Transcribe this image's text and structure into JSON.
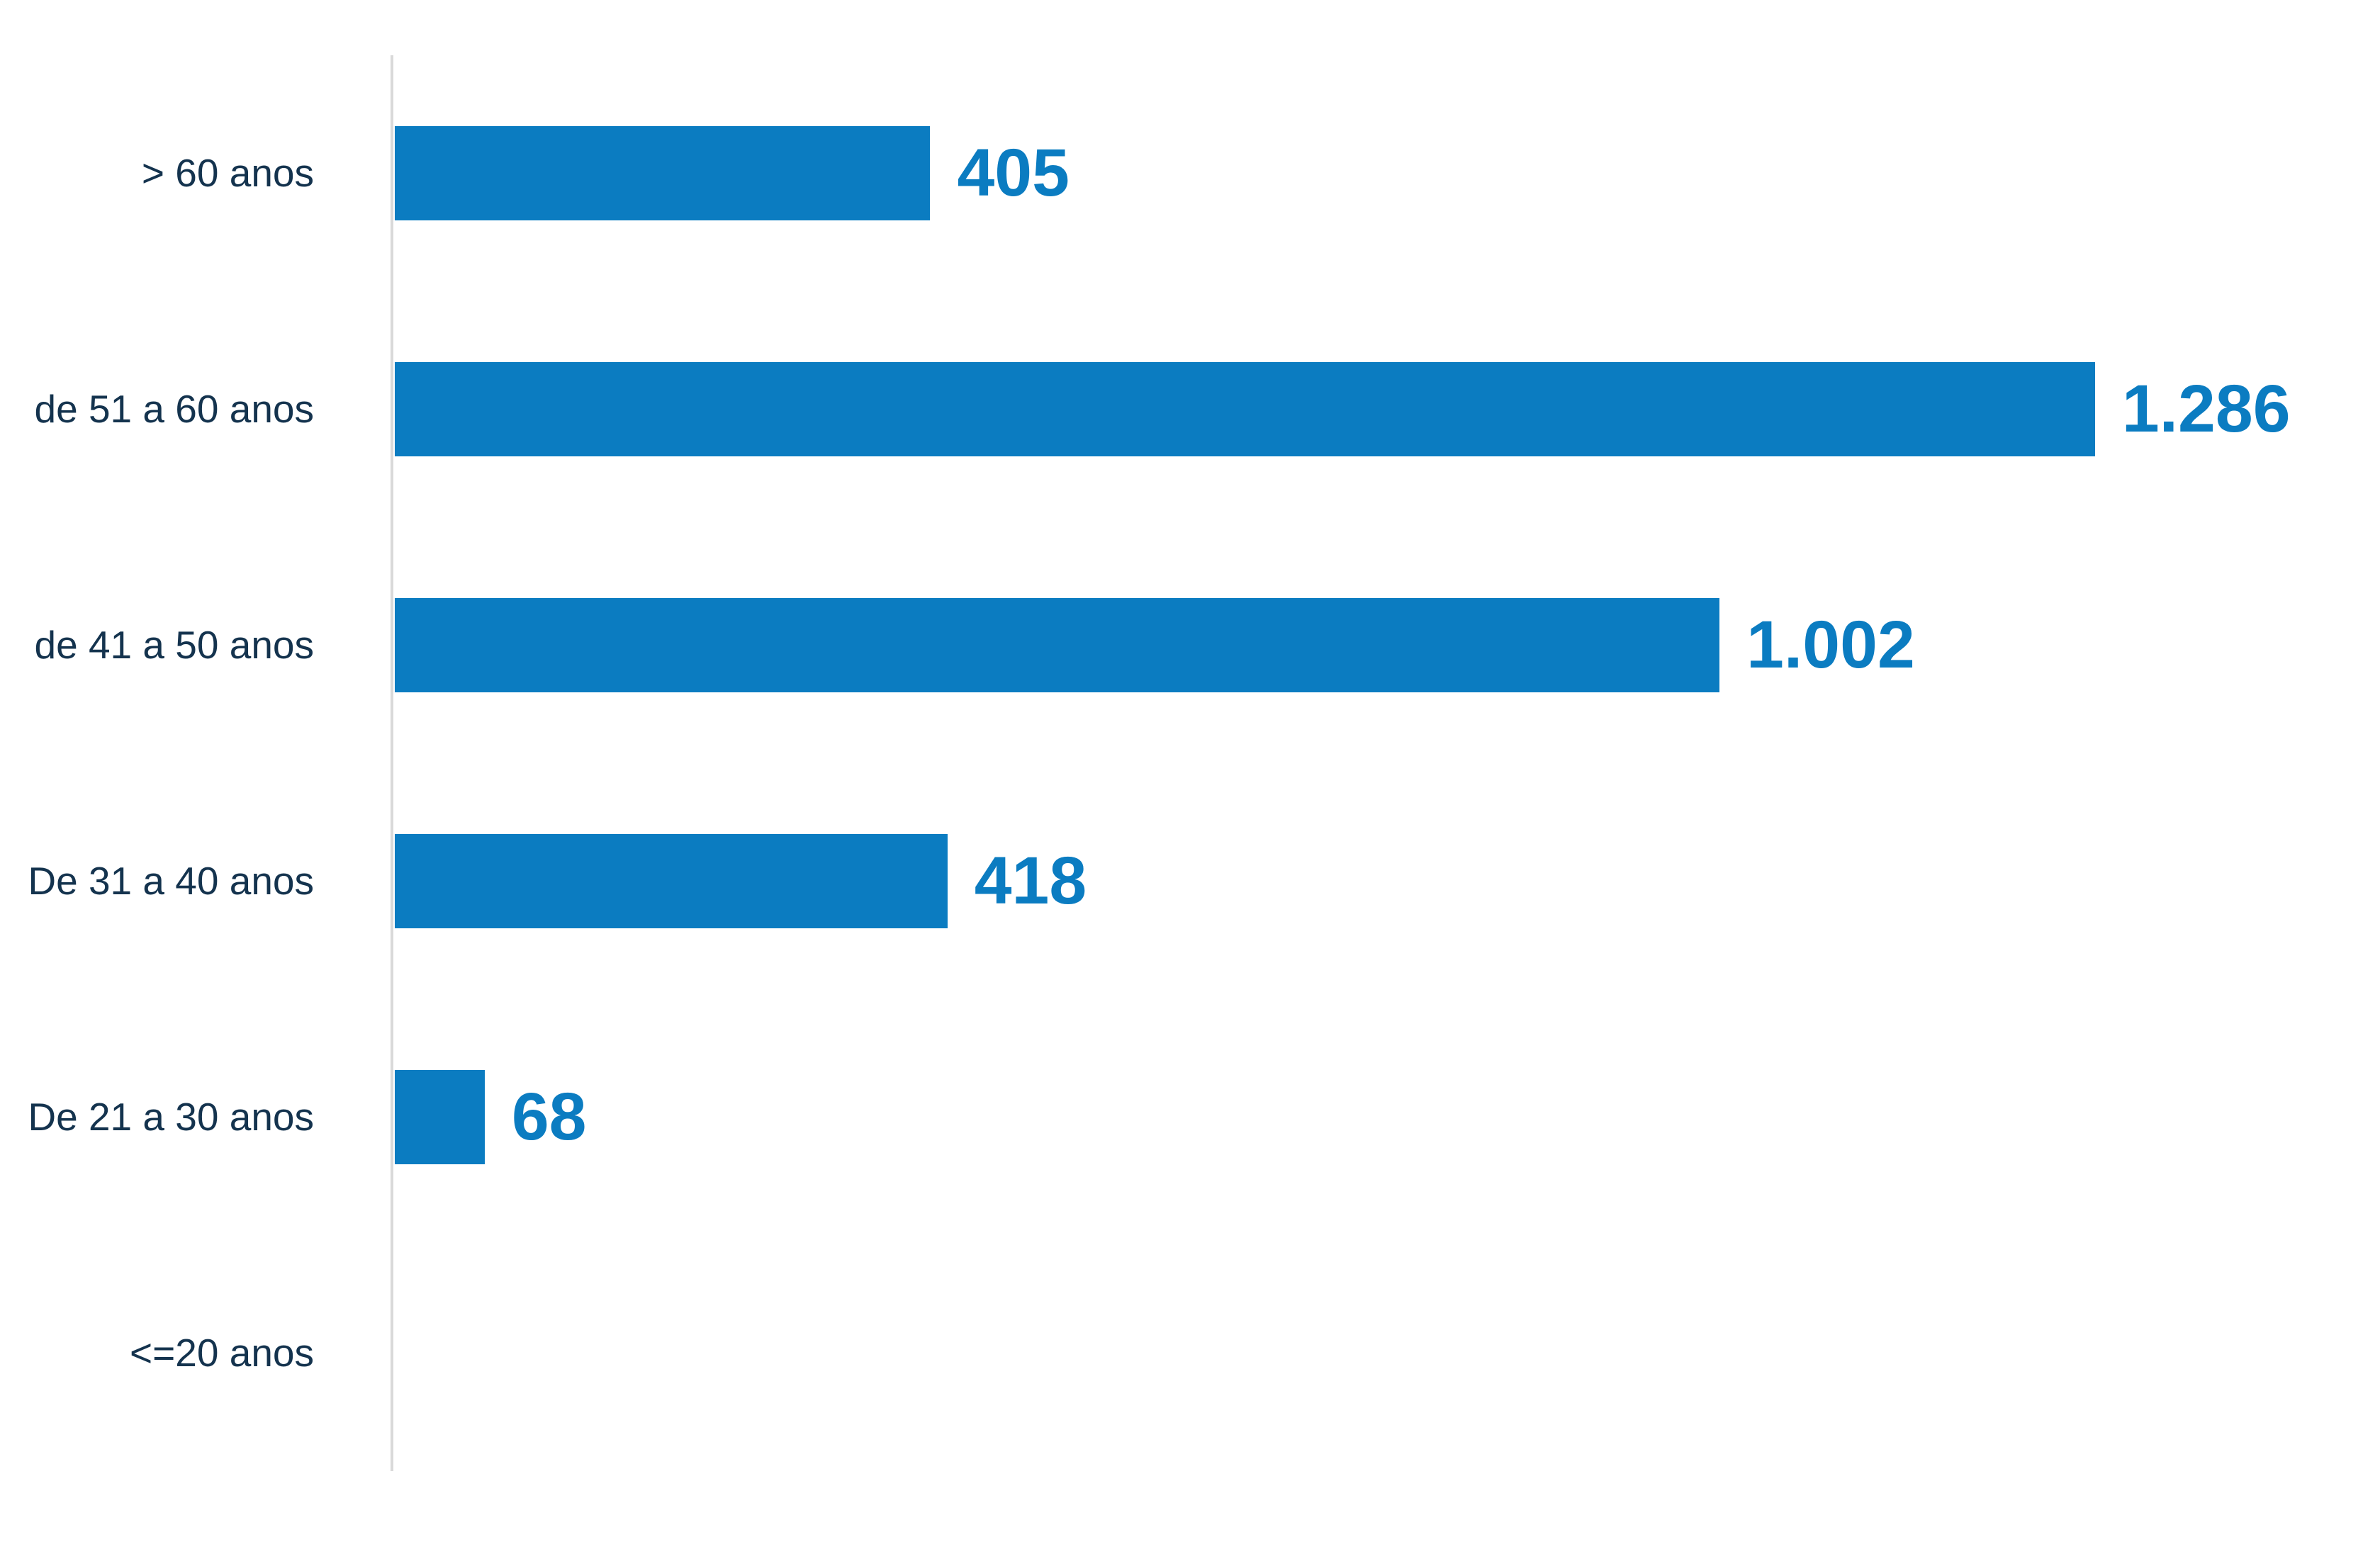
{
  "chart_data": {
    "type": "bar",
    "orientation": "horizontal",
    "title": "",
    "xlabel": "",
    "ylabel": "",
    "categories": [
      "> 60 anos",
      "de 51 a 60 anos",
      "de 41 a 50 anos",
      "De 31 a 40 anos",
      "De 21 a 30 anos",
      "<=20 anos"
    ],
    "values": [
      405,
      1286,
      1002,
      418,
      68,
      0
    ],
    "value_labels": [
      "405",
      "1.286",
      "1.002",
      "418",
      "68",
      ""
    ],
    "xlim": [
      0,
      1500
    ],
    "grid": false,
    "legend": false,
    "colors": {
      "bar": "#0b7cc1",
      "value_label": "#0b7cc1",
      "category_label": "#14334e",
      "axis_line": "#d9d9d9",
      "background": "#ffffff"
    }
  }
}
